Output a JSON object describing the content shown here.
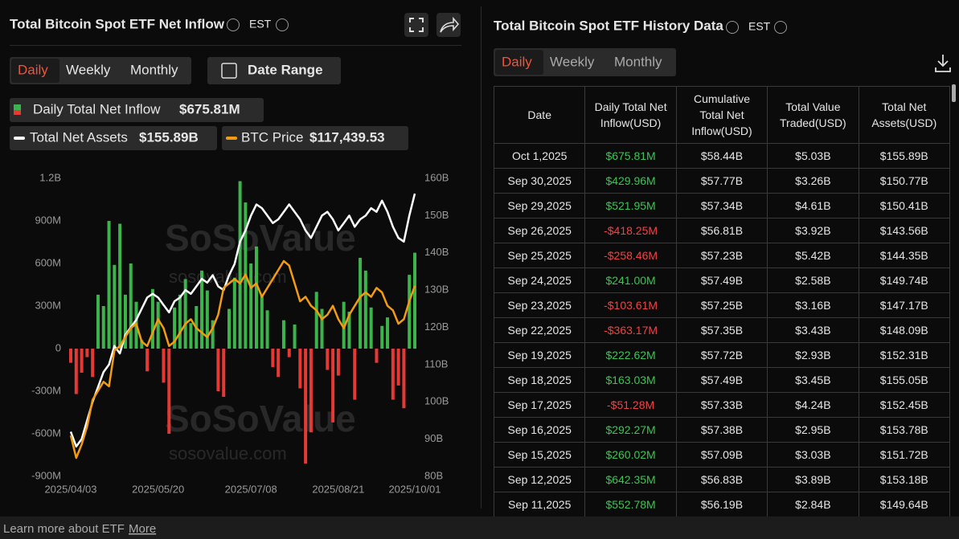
{
  "left_panel": {
    "title": "Total Bitcoin Spot ETF Net Inflow",
    "timezone": "EST",
    "tabs": [
      "Daily",
      "Weekly",
      "Monthly"
    ],
    "date_range": "Date Range"
  },
  "chart_data": {
    "type": "bar-line",
    "categories": [
      "2025/04/03",
      null,
      null,
      null,
      null,
      null,
      null,
      null,
      null,
      null,
      null,
      null,
      null,
      null,
      null,
      null,
      "2025/05/20",
      null,
      null,
      null,
      null,
      null,
      null,
      null,
      null,
      null,
      null,
      null,
      null,
      null,
      null,
      null,
      null,
      "2025/07/08",
      null,
      null,
      null,
      null,
      null,
      null,
      null,
      null,
      null,
      null,
      null,
      null,
      null,
      null,
      null,
      "2025/08/21",
      null,
      null,
      null,
      null,
      null,
      null,
      null,
      null,
      null,
      null,
      null,
      null,
      null,
      "2025/10/01"
    ],
    "series": [
      {
        "name": "Daily Total Net Inflow",
        "summary": "$675.81M",
        "color": "#3cb44b",
        "negative_color": "#e53935",
        "mark": "bar",
        "values": [
          -100,
          -320,
          -170,
          -60,
          -200,
          380,
          300,
          900,
          590,
          880,
          380,
          600,
          330,
          60,
          -160,
          420,
          330,
          -240,
          -600,
          290,
          380,
          490,
          180,
          300,
          550,
          410,
          200,
          -300,
          -340,
          280,
          500,
          1180,
          1030,
          600,
          720,
          380,
          270,
          -130,
          -200,
          200,
          -60,
          170,
          -280,
          -810,
          -590,
          400,
          280,
          -150,
          -520,
          -190,
          330,
          260,
          -360,
          640,
          550,
          290,
          -100,
          160,
          220,
          -360,
          -260,
          -420,
          520,
          675.81
        ]
      },
      {
        "name": "Total Net Assets",
        "summary": "$155.89B",
        "color": "#ffffff",
        "mark": "line",
        "axis": "y2",
        "values": [
          92,
          88,
          90,
          95,
          100,
          104,
          108,
          110,
          115,
          113,
          118,
          120,
          122,
          125,
          128,
          129,
          128,
          126,
          124,
          127,
          128,
          130,
          129,
          131,
          133,
          132,
          134,
          131,
          130,
          134,
          137,
          143,
          146,
          150,
          153,
          152,
          150,
          148,
          149,
          151,
          153,
          151,
          149,
          146,
          144,
          147,
          150,
          151,
          149,
          146,
          148,
          150,
          147,
          149,
          150,
          152,
          151,
          154,
          151,
          147,
          144,
          143,
          150,
          155.89
        ]
      },
      {
        "name": "BTC Price",
        "summary": "$117,439.53",
        "color": "#f39c12",
        "mark": "line",
        "axis": "own",
        "values": [
          84000,
          79000,
          82000,
          86000,
          92000,
          94000,
          96000,
          95000,
          103000,
          104000,
          106000,
          108000,
          109000,
          105000,
          104000,
          107000,
          110000,
          108000,
          104000,
          105000,
          107000,
          109000,
          110000,
          108000,
          107000,
          106000,
          108000,
          111000,
          117000,
          118000,
          119000,
          118000,
          120000,
          117000,
          118000,
          115000,
          117000,
          119000,
          121000,
          123000,
          122000,
          118000,
          114000,
          115000,
          113000,
          112000,
          110000,
          111000,
          113000,
          110000,
          108000,
          111000,
          113000,
          115000,
          116000,
          115000,
          117000,
          116000,
          113000,
          112000,
          109000,
          110000,
          114000,
          117439.53
        ]
      }
    ],
    "ylim": [
      -900,
      1200
    ],
    "yticks": [
      {
        "value": -900,
        "label": "-900M"
      },
      {
        "value": -600,
        "label": "-600M"
      },
      {
        "value": -300,
        "label": "-300M"
      },
      0,
      {
        "value": 300,
        "label": "300M"
      },
      {
        "value": 600,
        "label": "600M"
      },
      {
        "value": 900,
        "label": "900M"
      },
      {
        "value": 1200,
        "label": "1.2B"
      }
    ],
    "y2lim": [
      80,
      160
    ],
    "y2ticks": [
      {
        "value": 80,
        "label": "80B"
      },
      {
        "value": 90,
        "label": "90B"
      },
      {
        "value": 100,
        "label": "100B"
      },
      {
        "value": 110,
        "label": "110B"
      },
      {
        "value": 120,
        "label": "120B"
      },
      {
        "value": 130,
        "label": "130B"
      },
      {
        "value": 140,
        "label": "140B"
      },
      {
        "value": 150,
        "label": "150B"
      },
      {
        "value": 160,
        "label": "160B"
      }
    ],
    "grid": false
  },
  "watermark": {
    "brand": "SoSoValue",
    "url": "sosovalue.com"
  },
  "right_panel": {
    "title": "Total Bitcoin Spot ETF History Data",
    "timezone": "EST",
    "tabs": [
      "Daily",
      "Weekly",
      "Monthly"
    ]
  },
  "table": {
    "headers": [
      "Date",
      "Daily Total Net Inflow(USD)",
      "Cumulative Total Net Inflow(USD)",
      "Total Value Traded(USD)",
      "Total Net Assets(USD)"
    ],
    "rows": [
      [
        "Oct 1,2025",
        "$675.81M",
        "$58.44B",
        "$5.03B",
        "$155.89B"
      ],
      [
        "Sep 30,2025",
        "$429.96M",
        "$57.77B",
        "$3.26B",
        "$150.77B"
      ],
      [
        "Sep 29,2025",
        "$521.95M",
        "$57.34B",
        "$4.61B",
        "$150.41B"
      ],
      [
        "Sep 26,2025",
        "-$418.25M",
        "$56.81B",
        "$3.92B",
        "$143.56B"
      ],
      [
        "Sep 25,2025",
        "-$258.46M",
        "$57.23B",
        "$5.42B",
        "$144.35B"
      ],
      [
        "Sep 24,2025",
        "$241.00M",
        "$57.49B",
        "$2.58B",
        "$149.74B"
      ],
      [
        "Sep 23,2025",
        "-$103.61M",
        "$57.25B",
        "$3.16B",
        "$147.17B"
      ],
      [
        "Sep 22,2025",
        "-$363.17M",
        "$57.35B",
        "$3.43B",
        "$148.09B"
      ],
      [
        "Sep 19,2025",
        "$222.62M",
        "$57.72B",
        "$2.93B",
        "$152.31B"
      ],
      [
        "Sep 18,2025",
        "$163.03M",
        "$57.49B",
        "$3.45B",
        "$155.05B"
      ],
      [
        "Sep 17,2025",
        "-$51.28M",
        "$57.33B",
        "$4.24B",
        "$152.45B"
      ],
      [
        "Sep 16,2025",
        "$292.27M",
        "$57.38B",
        "$2.95B",
        "$153.78B"
      ],
      [
        "Sep 15,2025",
        "$260.02M",
        "$57.09B",
        "$3.03B",
        "$151.72B"
      ],
      [
        "Sep 12,2025",
        "$642.35M",
        "$56.83B",
        "$3.89B",
        "$153.18B"
      ],
      [
        "Sep 11,2025",
        "$552.78M",
        "$56.19B",
        "$2.84B",
        "$149.64B"
      ]
    ]
  },
  "footer": {
    "text": "Learn more about ETF",
    "link": "More"
  }
}
